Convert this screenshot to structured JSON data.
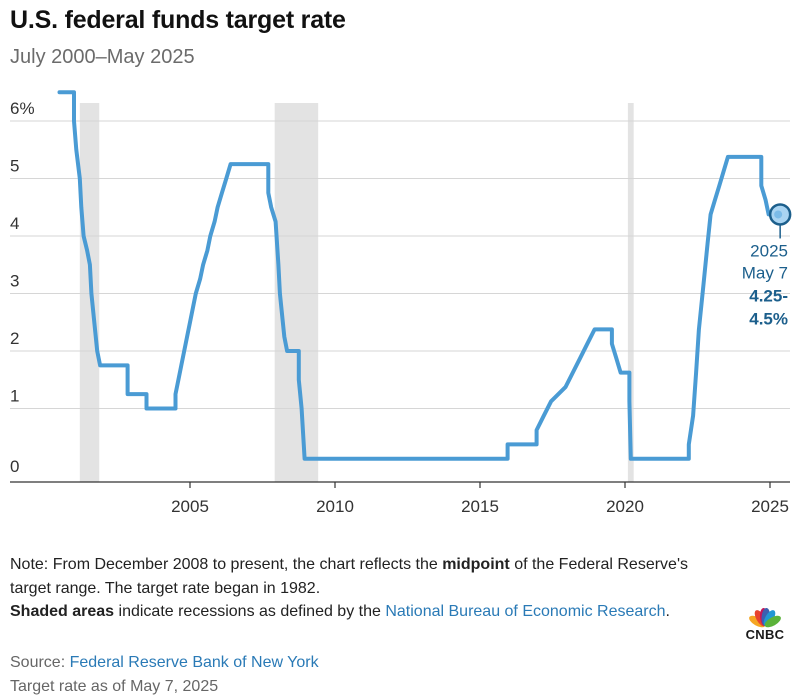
{
  "header": {
    "title": "U.S. federal funds target rate",
    "subtitle": "July 2000–May 2025"
  },
  "chart_data": {
    "type": "line",
    "title": "U.S. federal funds target rate",
    "subtitle": "July 2000–May 2025",
    "xlabel": "",
    "ylabel": "",
    "xlim": [
      2000.0,
      2025.8
    ],
    "ylim": [
      0,
      6.5
    ],
    "x_ticks": [
      2005,
      2010,
      2015,
      2020,
      2025
    ],
    "x_tick_labels": [
      "2005",
      "2010",
      "2015",
      "2020",
      "2025"
    ],
    "y_ticks": [
      0,
      1,
      2,
      3,
      4,
      5,
      6
    ],
    "y_tick_labels": [
      "0",
      "1",
      "2",
      "3",
      "4",
      "5",
      "6%"
    ],
    "grid": "horizontal",
    "line_color": "#4a9bd4",
    "recession_color": "#e3e3e3",
    "recessions": [
      [
        2001.2,
        2001.87
      ],
      [
        2007.92,
        2009.42
      ],
      [
        2020.1,
        2020.3
      ]
    ],
    "series": [
      {
        "values": [
          [
            2000.5,
            6.5
          ],
          [
            2001.0,
            6.5
          ],
          [
            2001.0,
            6.0
          ],
          [
            2001.08,
            5.5
          ],
          [
            2001.2,
            5.0
          ],
          [
            2001.25,
            4.5
          ],
          [
            2001.33,
            4.0
          ],
          [
            2001.45,
            3.75
          ],
          [
            2001.55,
            3.5
          ],
          [
            2001.6,
            3.0
          ],
          [
            2001.7,
            2.5
          ],
          [
            2001.8,
            2.0
          ],
          [
            2001.9,
            1.75
          ],
          [
            2002.85,
            1.75
          ],
          [
            2002.85,
            1.25
          ],
          [
            2003.5,
            1.25
          ],
          [
            2003.5,
            1.0
          ],
          [
            2004.5,
            1.0
          ],
          [
            2004.5,
            1.25
          ],
          [
            2004.6,
            1.5
          ],
          [
            2004.7,
            1.75
          ],
          [
            2004.8,
            2.0
          ],
          [
            2004.9,
            2.25
          ],
          [
            2005.0,
            2.5
          ],
          [
            2005.1,
            2.75
          ],
          [
            2005.2,
            3.0
          ],
          [
            2005.35,
            3.25
          ],
          [
            2005.45,
            3.5
          ],
          [
            2005.6,
            3.75
          ],
          [
            2005.7,
            4.0
          ],
          [
            2005.85,
            4.25
          ],
          [
            2005.95,
            4.5
          ],
          [
            2006.1,
            4.75
          ],
          [
            2006.25,
            5.0
          ],
          [
            2006.4,
            5.25
          ],
          [
            2007.7,
            5.25
          ],
          [
            2007.7,
            4.75
          ],
          [
            2007.8,
            4.5
          ],
          [
            2007.95,
            4.25
          ],
          [
            2008.05,
            3.5
          ],
          [
            2008.1,
            3.0
          ],
          [
            2008.25,
            2.25
          ],
          [
            2008.35,
            2.0
          ],
          [
            2008.75,
            2.0
          ],
          [
            2008.75,
            1.5
          ],
          [
            2008.85,
            1.0
          ],
          [
            2008.95,
            0.125
          ],
          [
            2015.95,
            0.125
          ],
          [
            2015.95,
            0.375
          ],
          [
            2016.95,
            0.375
          ],
          [
            2016.95,
            0.625
          ],
          [
            2017.2,
            0.875
          ],
          [
            2017.45,
            1.125
          ],
          [
            2017.95,
            1.375
          ],
          [
            2018.2,
            1.625
          ],
          [
            2018.45,
            1.875
          ],
          [
            2018.7,
            2.125
          ],
          [
            2018.95,
            2.375
          ],
          [
            2019.55,
            2.375
          ],
          [
            2019.55,
            2.125
          ],
          [
            2019.7,
            1.875
          ],
          [
            2019.85,
            1.625
          ],
          [
            2020.15,
            1.625
          ],
          [
            2020.15,
            1.125
          ],
          [
            2020.2,
            0.125
          ],
          [
            2022.2,
            0.125
          ],
          [
            2022.2,
            0.375
          ],
          [
            2022.35,
            0.875
          ],
          [
            2022.45,
            1.625
          ],
          [
            2022.55,
            2.375
          ],
          [
            2022.7,
            3.125
          ],
          [
            2022.85,
            3.875
          ],
          [
            2022.95,
            4.375
          ],
          [
            2023.1,
            4.625
          ],
          [
            2023.25,
            4.875
          ],
          [
            2023.4,
            5.125
          ],
          [
            2023.55,
            5.375
          ],
          [
            2024.7,
            5.375
          ],
          [
            2024.7,
            4.875
          ],
          [
            2024.85,
            4.625
          ],
          [
            2024.95,
            4.375
          ],
          [
            2025.35,
            4.375
          ]
        ]
      }
    ],
    "annotation": {
      "x": 2025.35,
      "y": 4.375,
      "year": "2025",
      "date": "May 7",
      "value_line1": "4.25-",
      "value_line2": "4.5%",
      "color": "#1c5f8c"
    }
  },
  "footer": {
    "note_prefix": "Note: From December 2008 to present, the chart reflects the ",
    "note_bold": "midpoint",
    "note_mid": " of the Federal Reserve's target range. The target rate began in 1982.",
    "shaded_bold": "Shaded areas",
    "shaded_text": " indicate recessions as defined by the ",
    "shaded_link": "National Bureau of Economic Research",
    "shaded_end": ".",
    "source_prefix": "Source: ",
    "source_link": "Federal Reserve Bank of New York",
    "asof": "Target rate as of May 7, 2025"
  },
  "logo": {
    "text": "CNBC",
    "colors": [
      "#f5a623",
      "#e8432e",
      "#c2185b",
      "#3c5fb0",
      "#2196d3",
      "#5bb33a"
    ]
  }
}
